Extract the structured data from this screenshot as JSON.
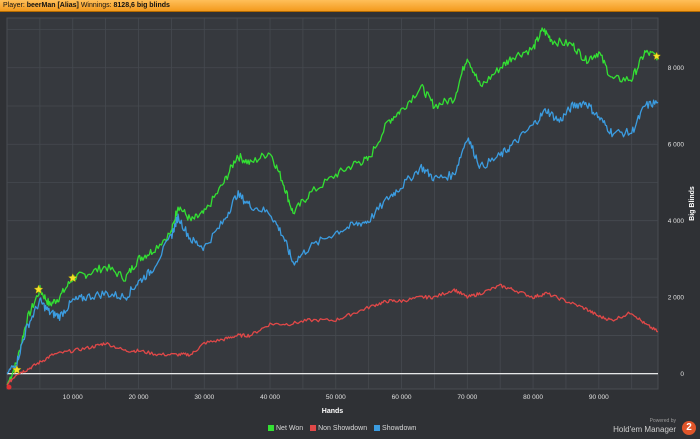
{
  "header": {
    "player_label": "Player:",
    "player_name": "beerMan [Alias]",
    "winnings_label": "Winnings:",
    "winnings_value": "8128,6 big blinds"
  },
  "legend": [
    {
      "label": "Net Won",
      "color": "#33e033"
    },
    {
      "label": "Non Showdown",
      "color": "#e04848"
    },
    {
      "label": "Showdown",
      "color": "#3b9ce0"
    }
  ],
  "brand": {
    "powered": "Powered by",
    "name": "Hold'em Manager",
    "badge": "2"
  },
  "chart_data": {
    "type": "line",
    "xlabel": "Hands",
    "ylabel": "Big Blinds",
    "xlim": [
      0,
      99000
    ],
    "ylim": [
      -400,
      9300
    ],
    "x_ticks": [
      10000,
      20000,
      30000,
      40000,
      50000,
      60000,
      70000,
      80000,
      90000
    ],
    "x_tick_labels": [
      "10 000",
      "20 000",
      "30 000",
      "40 000",
      "50 000",
      "60 000",
      "70 000",
      "80 000",
      "90 000"
    ],
    "y_ticks": [
      0,
      2000,
      4000,
      6000,
      8000
    ],
    "y_tick_labels": [
      "0",
      "2 000",
      "4 000",
      "6 000",
      "8 000"
    ],
    "grid": true,
    "legend_position": "bottom-center",
    "series": [
      {
        "name": "Net Won",
        "color": "#33e033",
        "x": [
          0,
          1500,
          3000,
          5000,
          6500,
          8000,
          10000,
          12000,
          15000,
          18000,
          20000,
          22000,
          25000,
          26000,
          28000,
          30000,
          33000,
          35000,
          37000,
          40000,
          42000,
          43500,
          46000,
          50000,
          53000,
          55000,
          58000,
          60000,
          63000,
          65000,
          68000,
          70000,
          72000,
          75000,
          77000,
          80000,
          81500,
          83000,
          86000,
          88000,
          90000,
          92000,
          95000,
          97000,
          99000
        ],
        "y": [
          -300,
          300,
          1400,
          2200,
          1800,
          2000,
          2500,
          2600,
          2800,
          2500,
          3000,
          3200,
          3700,
          4400,
          4000,
          4200,
          5000,
          5700,
          5500,
          5800,
          5000,
          4200,
          4700,
          5200,
          5500,
          5600,
          6600,
          6900,
          7500,
          7000,
          7200,
          8300,
          7500,
          8000,
          8300,
          8500,
          9000,
          8700,
          8600,
          8200,
          8400,
          7700,
          7700,
          8400,
          8300
        ]
      },
      {
        "name": "Non Showdown",
        "color": "#e04848",
        "x": [
          0,
          1500,
          3000,
          5000,
          7000,
          10000,
          13000,
          15000,
          18000,
          20000,
          23000,
          26000,
          28000,
          30000,
          33000,
          35000,
          37000,
          40000,
          43000,
          46000,
          50000,
          53000,
          56000,
          58000,
          60000,
          63000,
          65000,
          68000,
          70000,
          72000,
          75000,
          77000,
          80000,
          82000,
          85000,
          88000,
          90000,
          92000,
          95000,
          97000,
          99000
        ],
        "y": [
          -300,
          0,
          100,
          300,
          500,
          600,
          700,
          800,
          600,
          600,
          500,
          500,
          500,
          800,
          900,
          1000,
          1000,
          1300,
          1300,
          1400,
          1400,
          1600,
          1800,
          1900,
          1900,
          2000,
          2000,
          2200,
          2000,
          2100,
          2300,
          2200,
          2000,
          2100,
          1900,
          1700,
          1500,
          1400,
          1600,
          1300,
          1100
        ]
      },
      {
        "name": "Showdown",
        "color": "#3b9ce0",
        "x": [
          0,
          1500,
          3000,
          5000,
          6500,
          8000,
          10000,
          12000,
          15000,
          18000,
          20000,
          22000,
          25000,
          26000,
          28000,
          30000,
          33000,
          35000,
          37000,
          40000,
          42000,
          43500,
          46000,
          50000,
          53000,
          55000,
          58000,
          60000,
          63000,
          65000,
          68000,
          70000,
          72000,
          75000,
          77000,
          80000,
          82000,
          84000,
          86000,
          88000,
          90000,
          92000,
          95000,
          97000,
          99000
        ],
        "y": [
          0,
          300,
          1200,
          1900,
          1600,
          1500,
          1900,
          2000,
          2100,
          2000,
          2400,
          2700,
          3600,
          4100,
          3500,
          3300,
          4000,
          4700,
          4400,
          4200,
          3600,
          2900,
          3300,
          3700,
          3900,
          4000,
          4600,
          4900,
          5400,
          5100,
          5200,
          6200,
          5400,
          5700,
          6000,
          6500,
          6900,
          6600,
          7000,
          7100,
          6700,
          6300,
          6300,
          7000,
          7100
        ]
      }
    ]
  }
}
